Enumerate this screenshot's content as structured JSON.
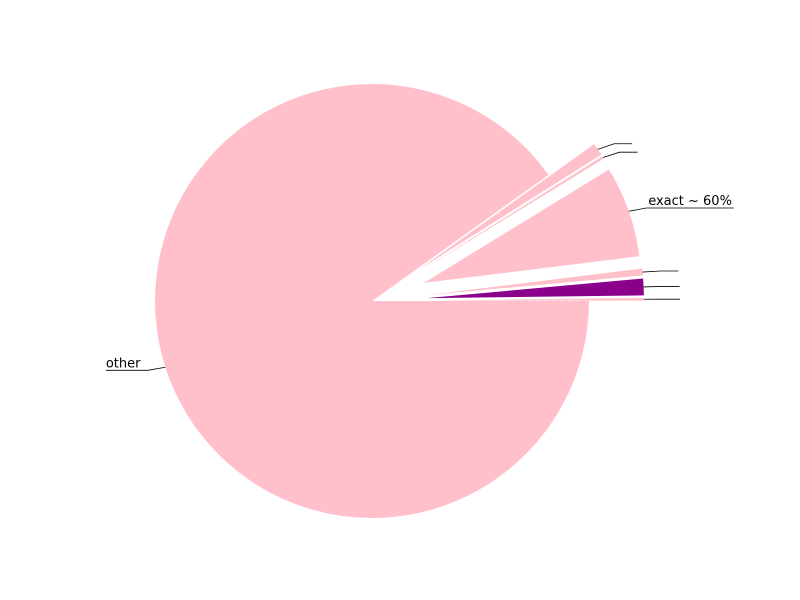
{
  "chart_data": {
    "type": "pie",
    "title": "",
    "slices": [
      {
        "label": "other",
        "value": 87.6,
        "color": "#ffc0cb",
        "explode": false
      },
      {
        "label": "",
        "value": 0.9,
        "color": "#ffc0cb",
        "explode": true
      },
      {
        "label": "",
        "value": 0.2,
        "color": "#ffc0cb",
        "explode": true
      },
      {
        "label": "exact ~ 60%",
        "value": 6.6,
        "color": "#ffc0cb",
        "explode": true
      },
      {
        "label": "",
        "value": 0.5,
        "color": "#ffc0cb",
        "explode": true
      },
      {
        "label": "",
        "value": 1.2,
        "color": "#8b008b",
        "explode": true
      },
      {
        "label": "",
        "value": 0.2,
        "color": "#ffc0cb",
        "explode": true
      }
    ],
    "start_angle_deg": 0,
    "direction": "clockwise",
    "legend": "none"
  }
}
